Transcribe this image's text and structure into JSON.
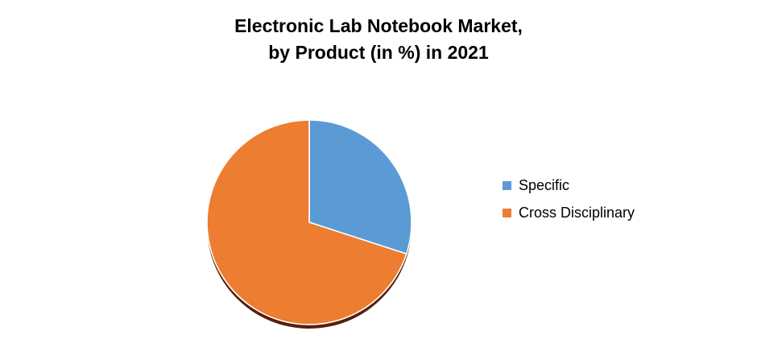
{
  "title": {
    "line1": "Electronic Lab Notebook Market,",
    "line2": "by Product (in %) in 2021"
  },
  "legend": [
    {
      "label": "Specific",
      "color": "#5B9BD5"
    },
    {
      "label": "Cross Disciplinary",
      "color": "#ED7D31"
    }
  ],
  "chart_data": {
    "type": "pie",
    "title": "Electronic Lab Notebook Market, by Product (in %) in 2021",
    "categories": [
      "Specific",
      "Cross Disciplinary"
    ],
    "values": [
      30,
      70
    ],
    "colors": [
      "#5B9BD5",
      "#ED7D31"
    ],
    "shadow_color": "#571F0B",
    "start_angle_deg": 0,
    "direction": "clockwise",
    "legend_position": "right",
    "data_labels_shown": false
  }
}
